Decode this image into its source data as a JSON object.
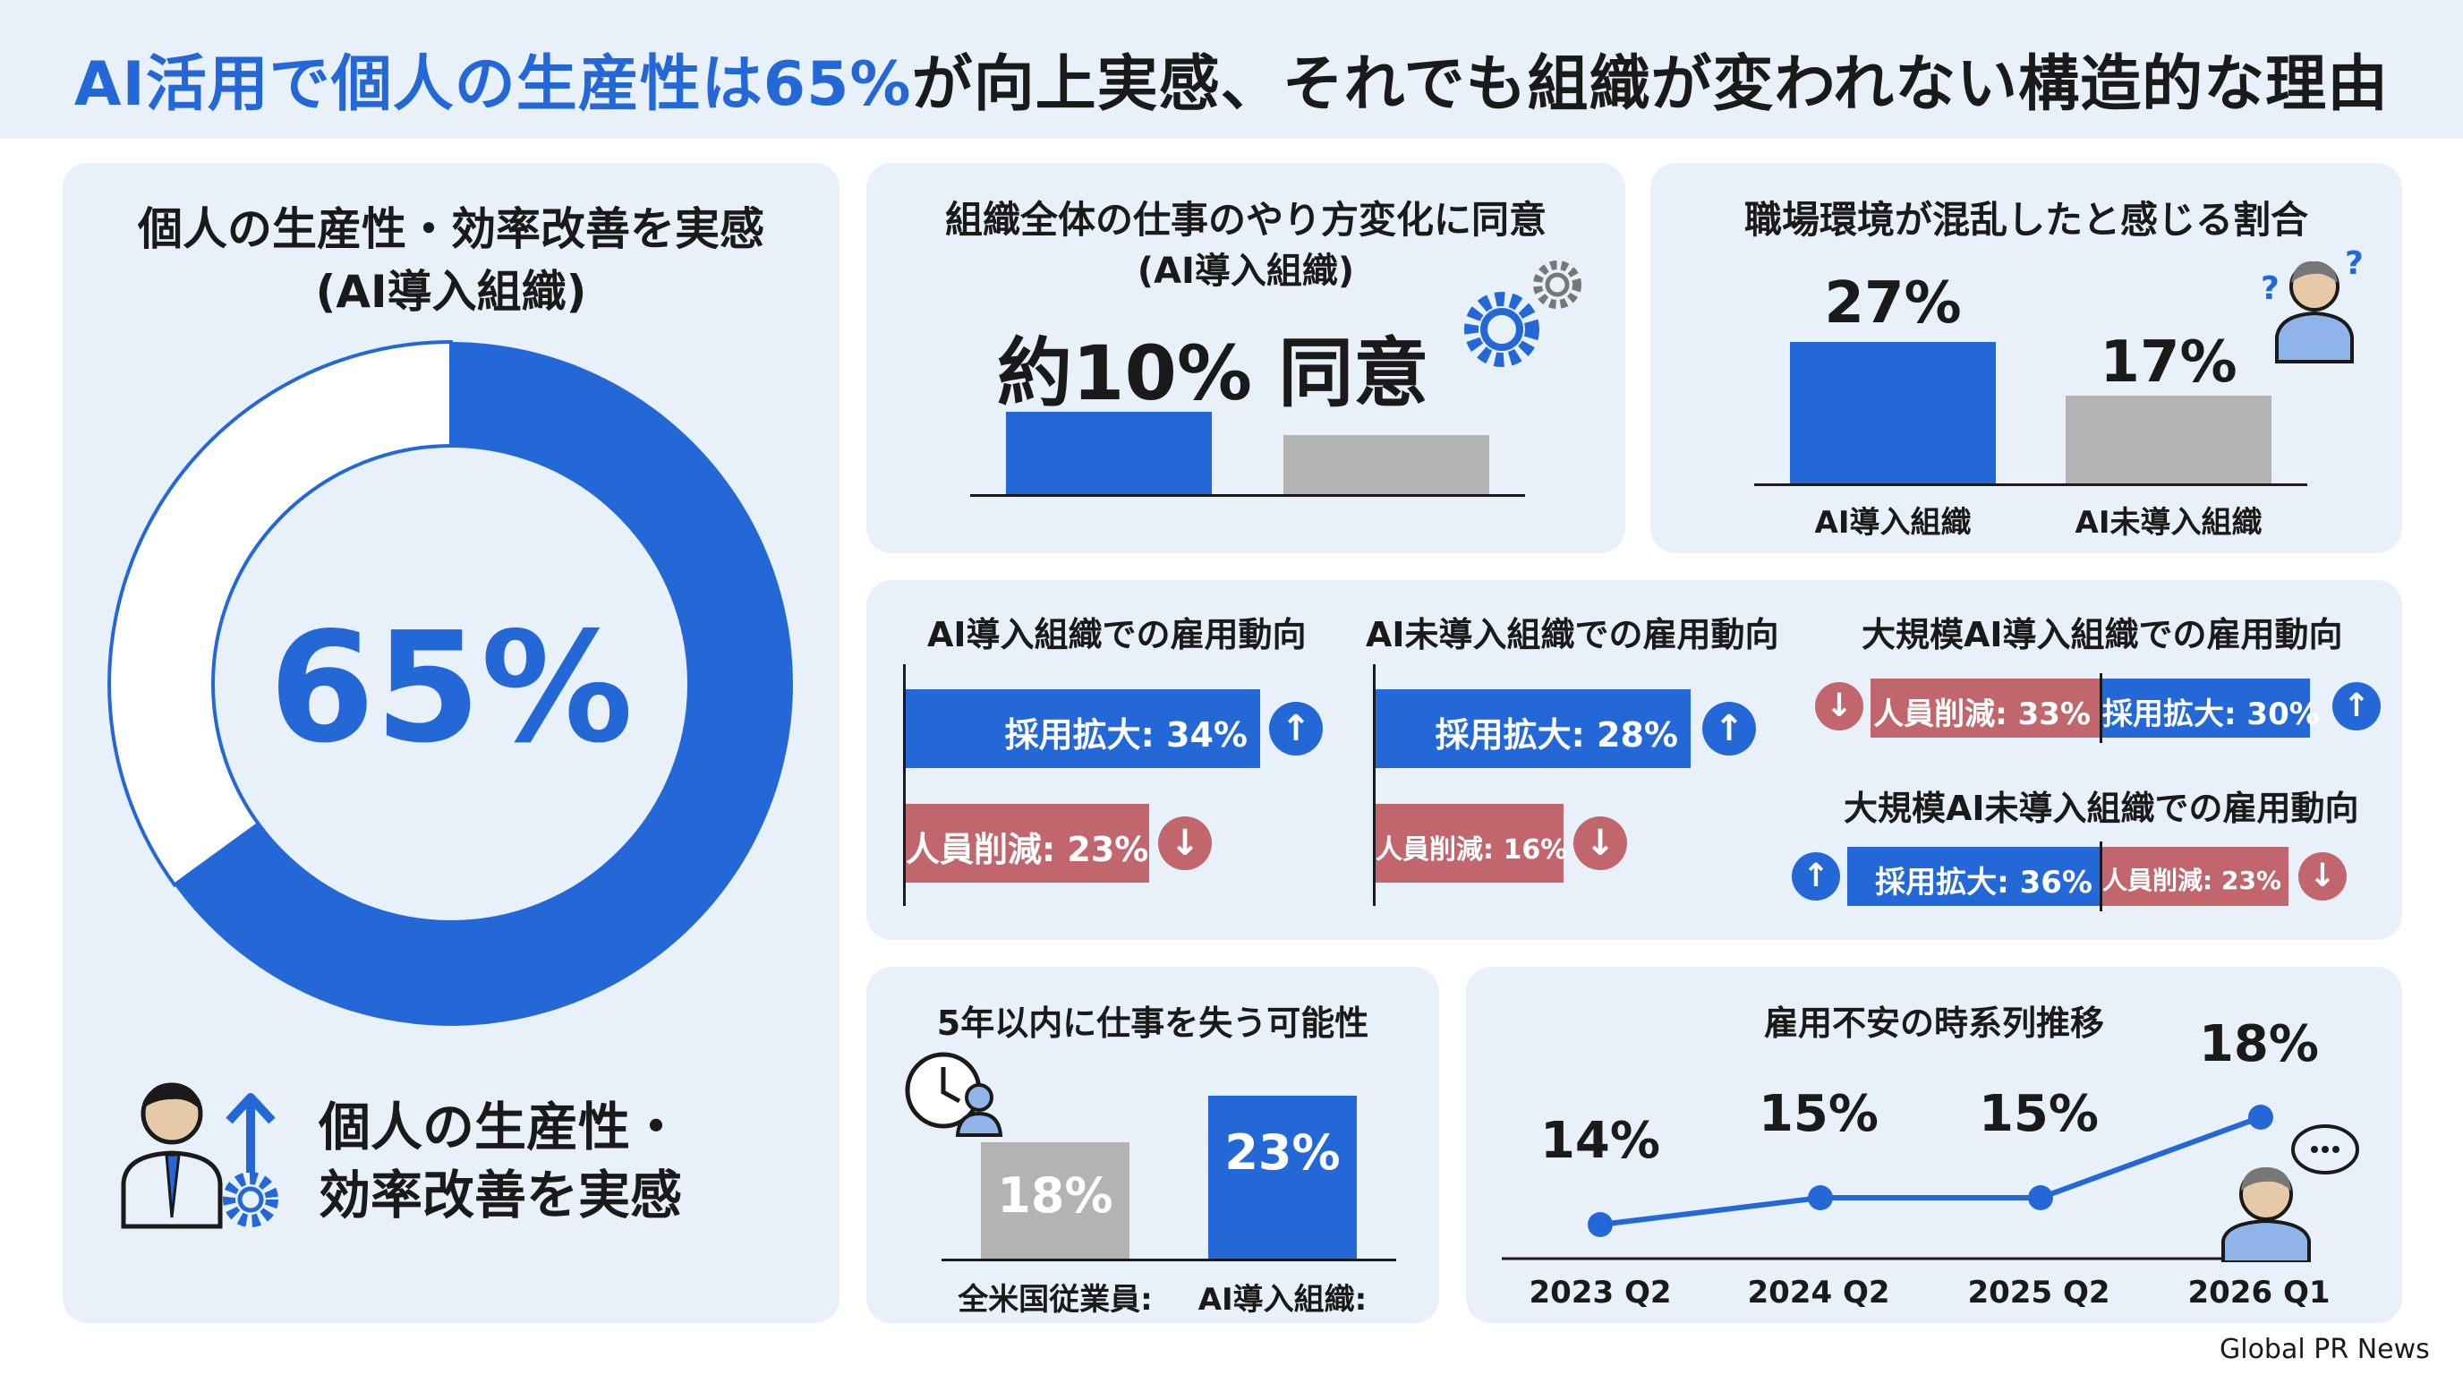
{
  "header": {
    "title_prefix": "AI活用で個人の生産性は65%",
    "title_suffix": "が向上実感、それでも組織が変われない構造的な理由"
  },
  "colors": {
    "accent_blue": "#2468d8",
    "gray": "#b3b3b3",
    "red": "#c0666c",
    "card_bg": "#e8f0f9"
  },
  "icons": [
    "person-upward-arrow-gear-icon",
    "gear-icon",
    "confused-person-icon",
    "arrow-up-icon",
    "arrow-down-icon",
    "clock-person-icon",
    "thinking-person-icon"
  ],
  "footer": {
    "credit": "Global PR News"
  },
  "panel_productivity": {
    "title_line1": "個人の生産性・効率改善を実感",
    "title_line2": "(AI導入組織)",
    "center_value": "65%",
    "caption_line1": "個人の生産性・",
    "caption_line2": "効率改善を実感"
  },
  "panel_change": {
    "title_line1": "組織全体の仕事のやり方変化に同意",
    "title_line2": "(AI導入組織)",
    "big_label": "約10% 同意"
  },
  "panel_chaos": {
    "title": "職場環境が混乱したと感じる割合",
    "labels": [
      "27%",
      "17%"
    ],
    "categories": [
      "AI導入組織",
      "AI未導入組織"
    ]
  },
  "panel_employment": {
    "g1_title": "AI導入組織での雇用動向",
    "g1_hire": "採用拡大: 34%",
    "g1_cut": "人員削減: 23%",
    "g2_title": "AI未導入組織での雇用動向",
    "g2_hire": "採用拡大: 28%",
    "g2_cut": "人員削減: 16%",
    "g3_title": "大規模AI導入組織での雇用動向",
    "g3_cut": "人員削減: 33%",
    "g3_hire": "採用拡大: 30%",
    "g4_title": "大規模AI未導入組織での雇用動向",
    "g4_hire": "採用拡大: 36%",
    "g4_cut": "人員削減: 23%"
  },
  "panel_jobloss": {
    "title": "5年以内に仕事を失う可能性",
    "labels": [
      "18%",
      "23%"
    ],
    "categories": [
      "全米国従業員:",
      "AI導入組織:"
    ]
  },
  "panel_trend": {
    "title": "雇用不安の時系列推移",
    "labels": [
      "14%",
      "15%",
      "15%",
      "18%"
    ],
    "categories": [
      "2023 Q2",
      "2024 Q2",
      "2025 Q2",
      "2026 Q1"
    ]
  },
  "chart_data": [
    {
      "type": "pie",
      "title": "個人の生産性・効率改善を実感 (AI導入組織)",
      "categories": [
        "個人の生産性・効率改善を実感"
      ],
      "values": [
        65
      ]
    },
    {
      "type": "bar",
      "title": "組織全体の仕事のやり方変化に同意 (AI導入組織)",
      "categories": [
        "",
        ""
      ],
      "values": [
        10,
        null
      ],
      "note": "約10% 同意"
    },
    {
      "type": "bar",
      "title": "職場環境が混乱したと感じる割合",
      "categories": [
        "AI導入組織",
        "AI未導入組織"
      ],
      "values": [
        27,
        17
      ]
    },
    {
      "type": "bar",
      "title": "AI導入組織での雇用動向",
      "categories": [
        "採用拡大",
        "人員削減"
      ],
      "values": [
        34,
        23
      ]
    },
    {
      "type": "bar",
      "title": "AI未導入組織での雇用動向",
      "categories": [
        "採用拡大",
        "人員削減"
      ],
      "values": [
        28,
        16
      ]
    },
    {
      "type": "bar",
      "title": "大規模AI導入組織での雇用動向",
      "categories": [
        "人員削減",
        "採用拡大"
      ],
      "values": [
        33,
        30
      ]
    },
    {
      "type": "bar",
      "title": "大規模AI未導入組織での雇用動向",
      "categories": [
        "採用拡大",
        "人員削減"
      ],
      "values": [
        36,
        23
      ]
    },
    {
      "type": "bar",
      "title": "5年以内に仕事を失う可能性",
      "categories": [
        "全米国従業員:",
        "AI導入組織:"
      ],
      "values": [
        18,
        23
      ]
    },
    {
      "type": "line",
      "title": "雇用不安の時系列推移",
      "x": [
        "2023 Q2",
        "2024 Q2",
        "2025 Q2",
        "2026 Q1"
      ],
      "values": [
        14,
        15,
        15,
        18
      ]
    }
  ]
}
